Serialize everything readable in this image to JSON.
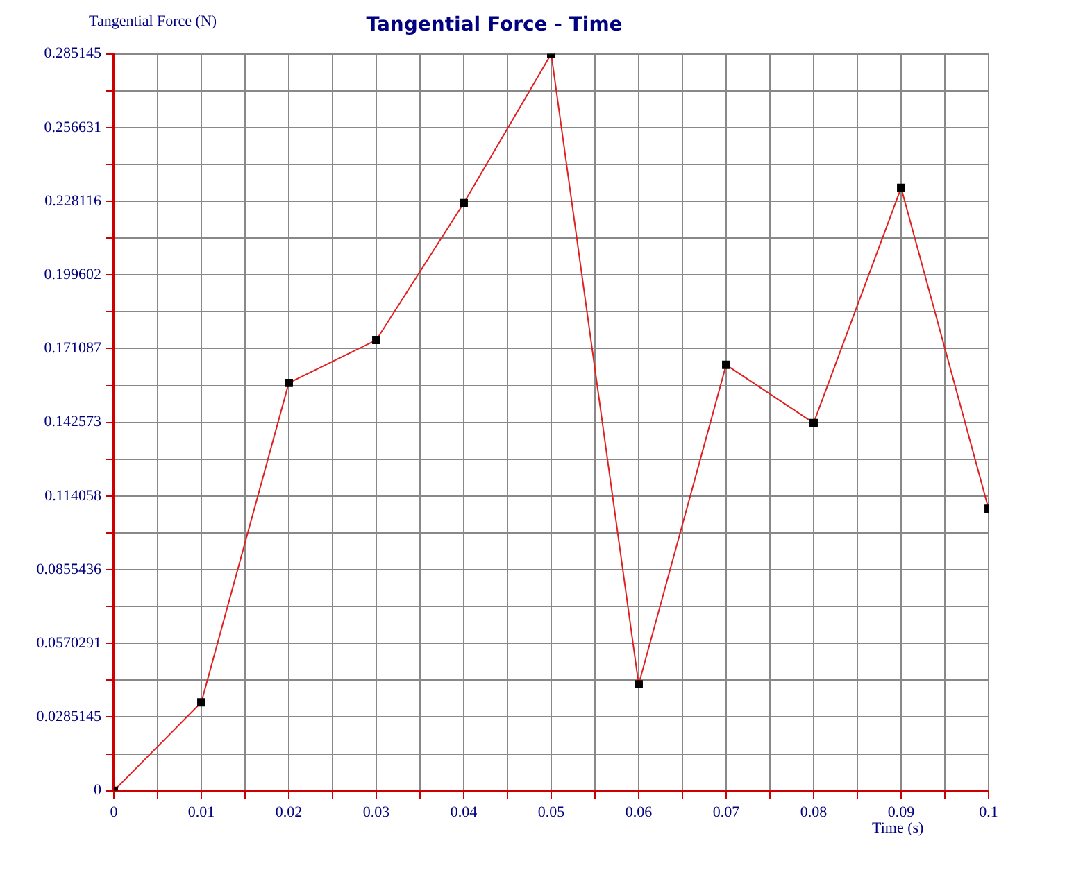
{
  "chart_data": {
    "type": "line",
    "title": "Tangential Force - Time",
    "xlabel": "Time (s)",
    "ylabel": "Tangential Force (N)",
    "x": [
      0,
      0.01,
      0.02,
      0.03,
      0.04,
      0.05,
      0.06,
      0.07,
      0.08,
      0.09,
      0.1
    ],
    "series": [
      {
        "color": "#e02020",
        "values": [
          0,
          0.0342,
          0.1578,
          0.1744,
          0.2274,
          0.2851,
          0.0412,
          0.1648,
          0.1423,
          0.2333,
          0.1091
        ]
      }
    ],
    "xlim": [
      0,
      0.1
    ],
    "xticks": [
      0,
      {
        "value": 0.005,
        "label": null
      },
      0.01,
      {
        "value": 0.015,
        "label": null
      },
      0.02,
      {
        "value": 0.025,
        "label": null
      },
      0.03,
      {
        "value": 0.035,
        "label": null
      },
      0.04,
      {
        "value": 0.045,
        "label": null
      },
      0.05,
      {
        "value": 0.055,
        "label": null
      },
      0.06,
      {
        "value": 0.065,
        "label": null
      },
      0.07,
      {
        "value": 0.075,
        "label": null
      },
      0.08,
      {
        "value": 0.085,
        "label": null
      },
      0.09,
      {
        "value": 0.095,
        "label": null
      },
      0.1
    ],
    "ylim": [
      0,
      0.285145
    ],
    "yticks": [
      0,
      {
        "value": 0.01425725,
        "label": null
      },
      0.0285145,
      {
        "value": 0.04277175,
        "label": null
      },
      0.0570291,
      {
        "value": 0.07128625,
        "label": null
      },
      0.0855436,
      {
        "value": 0.09980075,
        "label": null
      },
      0.114058,
      {
        "value": 0.12831525,
        "label": null
      },
      0.142573,
      {
        "value": 0.15682975,
        "label": null
      },
      0.171087,
      {
        "value": 0.18534425,
        "label": null
      },
      0.199602,
      {
        "value": 0.21385875,
        "label": null
      },
      0.228116,
      {
        "value": 0.24237325,
        "label": null
      },
      0.256631,
      {
        "value": 0.27088775,
        "label": null
      },
      0.285145
    ],
    "grid": true,
    "marker": "square",
    "line_style": "solid",
    "legend": false
  }
}
